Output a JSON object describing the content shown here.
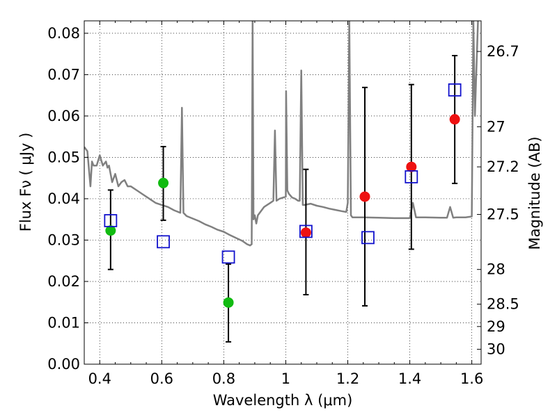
{
  "chart_data": {
    "type": "scatter",
    "title": "",
    "xlabel": "Wavelength  λ (μm)",
    "ylabel": "Flux  Fν ( μJy )",
    "ylabel_right": "Magnitude (AB)",
    "xlim": [
      0.35,
      1.63
    ],
    "ylim": [
      0.0,
      0.083
    ],
    "grid": true,
    "x_ticks": [
      0.4,
      0.6,
      0.8,
      1.0,
      1.2,
      1.4,
      1.6
    ],
    "x_tick_labels": [
      "0.4",
      "0.6",
      "0.8",
      "1",
      "1.2",
      "1.4",
      "1.6"
    ],
    "y_ticks": [
      0.0,
      0.01,
      0.02,
      0.03,
      0.04,
      0.05,
      0.06,
      0.07,
      0.08
    ],
    "y_tick_labels": [
      "0.00",
      "0.01",
      "0.02",
      "0.03",
      "0.04",
      "0.05",
      "0.06",
      "0.07",
      "0.08"
    ],
    "right_ticks": [
      {
        "flux": 0.0756,
        "label": "26.7"
      },
      {
        "flux": 0.0574,
        "label": "27"
      },
      {
        "flux": 0.0477,
        "label": "27.2"
      },
      {
        "flux": 0.0362,
        "label": "27.5"
      },
      {
        "flux": 0.0229,
        "label": "28"
      },
      {
        "flux": 0.0145,
        "label": "28.5"
      },
      {
        "flux": 0.0091,
        "label": "29"
      },
      {
        "flux": 0.0036,
        "label": "30"
      }
    ],
    "series": [
      {
        "name": "model spectrum",
        "kind": "line",
        "color": "#808080",
        "x": [
          0.35,
          0.36,
          0.37,
          0.375,
          0.38,
          0.39,
          0.4,
          0.41,
          0.42,
          0.425,
          0.43,
          0.44,
          0.45,
          0.46,
          0.47,
          0.48,
          0.49,
          0.5,
          0.52,
          0.54,
          0.56,
          0.58,
          0.6,
          0.62,
          0.64,
          0.66,
          0.665,
          0.67,
          0.675,
          0.68,
          0.7,
          0.72,
          0.74,
          0.76,
          0.78,
          0.8,
          0.82,
          0.84,
          0.86,
          0.875,
          0.885,
          0.89,
          0.893,
          0.896,
          0.9,
          0.905,
          0.91,
          0.93,
          0.95,
          0.96,
          0.965,
          0.97,
          0.98,
          1.0,
          1.001,
          1.005,
          1.01,
          1.02,
          1.03,
          1.04,
          1.045,
          1.05,
          1.055,
          1.06,
          1.08,
          1.1,
          1.12,
          1.14,
          1.16,
          1.18,
          1.195,
          1.2,
          1.205,
          1.21,
          1.215,
          1.22,
          1.25,
          1.3,
          1.35,
          1.4,
          1.41,
          1.42,
          1.45,
          1.5,
          1.52,
          1.53,
          1.54,
          1.55,
          1.58,
          1.6,
          1.605,
          1.61,
          1.62
        ],
        "y": [
          0.0525,
          0.0515,
          0.043,
          0.049,
          0.048,
          0.048,
          0.0505,
          0.048,
          0.049,
          0.0475,
          0.048,
          0.044,
          0.046,
          0.043,
          0.044,
          0.0445,
          0.043,
          0.043,
          0.042,
          0.041,
          0.04,
          0.039,
          0.0385,
          0.038,
          0.0372,
          0.0366,
          0.062,
          0.0366,
          0.0362,
          0.0358,
          0.0352,
          0.0346,
          0.0338,
          0.0332,
          0.0325,
          0.032,
          0.0312,
          0.0305,
          0.0298,
          0.029,
          0.0287,
          0.029,
          0.083,
          0.035,
          0.036,
          0.034,
          0.036,
          0.038,
          0.039,
          0.0395,
          0.0565,
          0.0395,
          0.04,
          0.0405,
          0.066,
          0.042,
          0.0412,
          0.0403,
          0.04,
          0.0395,
          0.0395,
          0.071,
          0.0385,
          0.0385,
          0.0388,
          0.0383,
          0.038,
          0.0376,
          0.0373,
          0.037,
          0.0368,
          0.039,
          0.083,
          0.036,
          0.0355,
          0.0355,
          0.0355,
          0.0354,
          0.0353,
          0.0353,
          0.039,
          0.0355,
          0.0355,
          0.0354,
          0.0354,
          0.038,
          0.0354,
          0.0355,
          0.0355,
          0.0357,
          0.083,
          0.06,
          0.083
        ]
      },
      {
        "name": "green points",
        "kind": "point",
        "color": "#11bb11",
        "x": [
          0.435,
          0.605,
          0.815
        ],
        "y": [
          0.0323,
          0.0438,
          0.0149
        ],
        "yerr_low": [
          0.0229,
          0.0348,
          0.0054
        ],
        "yerr_high": [
          0.0421,
          0.0526,
          0.0242
        ]
      },
      {
        "name": "red points",
        "kind": "point",
        "color": "#ee1111",
        "x": [
          1.065,
          1.255,
          1.405,
          1.545
        ],
        "y": [
          0.0318,
          0.0405,
          0.0477,
          0.0592
        ],
        "yerr_low": [
          0.0168,
          0.0141,
          0.0278,
          0.0437
        ],
        "yerr_high": [
          0.0471,
          0.0669,
          0.0676,
          0.0746
        ]
      },
      {
        "name": "blue squares",
        "kind": "square",
        "color": "#1111cc",
        "x": [
          0.435,
          0.605,
          0.815,
          1.065,
          1.265,
          1.405,
          1.545
        ],
        "y": [
          0.0347,
          0.0296,
          0.0259,
          0.0321,
          0.0306,
          0.0453,
          0.0663
        ]
      }
    ]
  }
}
